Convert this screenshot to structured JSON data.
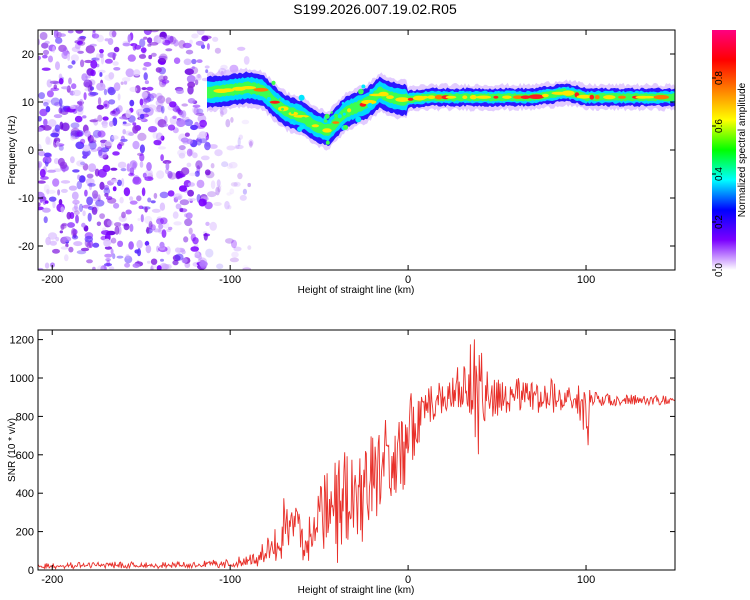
{
  "figure_title": "S199.2026.007.19.02.R05",
  "chart_data": [
    {
      "type": "heatmap",
      "title": "S199.2026.007.19.02.R05",
      "xlabel": "Height of straight line (km)",
      "ylabel": "Frequency (Hz)",
      "xlim": [
        -208,
        150
      ],
      "ylim": [
        -25,
        25
      ],
      "xticks": [
        -200,
        -100,
        0,
        100
      ],
      "yticks": [
        -20,
        -10,
        0,
        10,
        20
      ],
      "xtick_labels": [
        "-200",
        "-100",
        "0",
        "100"
      ],
      "ytick_labels": [
        "-20",
        "-10",
        "0",
        "10",
        "20"
      ],
      "grid": false,
      "ridge": {
        "name": "dominant frequency trace",
        "x": [
          -113,
          -100,
          -90,
          -82,
          -75,
          -68,
          -60,
          -52,
          -45,
          -40,
          -35,
          -28,
          -22,
          -16,
          -10,
          -4,
          0,
          10,
          20,
          30,
          40,
          50,
          60,
          70,
          80,
          88,
          95,
          100,
          110,
          120,
          130,
          140,
          150
        ],
        "y": [
          12,
          12.5,
          13,
          12.5,
          10,
          8,
          7,
          5,
          4,
          6,
          8,
          9,
          10,
          12,
          11,
          10.5,
          10.5,
          11,
          11,
          11,
          11,
          11,
          11,
          11,
          11.5,
          12,
          11.5,
          11,
          11,
          11,
          11,
          11,
          11
        ]
      },
      "noise_region": {
        "x_start": -208,
        "x_end": -100,
        "description": "scattered low-amplitude speckle"
      },
      "colorbar": {
        "label": "Normalized spectral amplitude",
        "range": [
          0,
          1
        ],
        "ticks": [
          0.0,
          0.2,
          0.4,
          0.6,
          0.8
        ],
        "tick_labels": [
          "0.0",
          "0.2",
          "0.4",
          "0.6",
          "0.8"
        ],
        "colors": [
          "#ffffff",
          "#7b00ff",
          "#0000ff",
          "#00ffff",
          "#00ff00",
          "#ffff00",
          "#ff8000",
          "#ff0000",
          "#ff0080"
        ]
      }
    },
    {
      "type": "line",
      "title": "",
      "xlabel": "Height of straight line (km)",
      "ylabel": "SNR (10 * v/v)",
      "xlim": [
        -208,
        150
      ],
      "ylim": [
        0,
        1250
      ],
      "xticks": [
        -200,
        -100,
        0,
        100
      ],
      "yticks": [
        0,
        200,
        400,
        600,
        800,
        1000,
        1200
      ],
      "xtick_labels": [
        "-200",
        "-100",
        "0",
        "100"
      ],
      "ytick_labels": [
        "0",
        "200",
        "400",
        "600",
        "800",
        "1000",
        "1200"
      ],
      "grid": false,
      "series": [
        {
          "name": "SNR",
          "color": "#e8302a",
          "x": [
            -208,
            -180,
            -150,
            -120,
            -100,
            -90,
            -80,
            -75,
            -70,
            -66,
            -63,
            -60,
            -57,
            -54,
            -50,
            -46,
            -42,
            -38,
            -34,
            -30,
            -26,
            -22,
            -18,
            -14,
            -10,
            -6,
            -2,
            0,
            4,
            8,
            12,
            16,
            20,
            24,
            28,
            32,
            36,
            40,
            42,
            44,
            46,
            48,
            50,
            55,
            60,
            65,
            70,
            75,
            80,
            85,
            90,
            95,
            100,
            101,
            102,
            105,
            110,
            120,
            130,
            140,
            150
          ],
          "y": [
            20,
            25,
            22,
            25,
            30,
            40,
            60,
            90,
            180,
            250,
            300,
            200,
            130,
            180,
            250,
            300,
            330,
            360,
            380,
            400,
            420,
            450,
            500,
            540,
            560,
            600,
            640,
            700,
            760,
            800,
            830,
            860,
            880,
            900,
            910,
            920,
            930,
            950,
            1000,
            900,
            880,
            870,
            880,
            880,
            900,
            880,
            910,
            880,
            900,
            880,
            900,
            890,
            860,
            700,
            880,
            900,
            880,
            890,
            880,
            890,
            880
          ],
          "envelope_high": [
            40,
            45,
            42,
            45,
            60,
            80,
            150,
            250,
            420,
            450,
            380,
            300,
            250,
            320,
            420,
            560,
            620,
            660,
            680,
            700,
            720,
            740,
            760,
            800,
            850,
            880,
            900,
            920,
            930,
            950,
            980,
            1000,
            1010,
            1030,
            1060,
            1120,
            1200,
            1250,
            1150,
            1100,
            1000,
            990,
            1000,
            980,
            1000,
            1000,
            1010,
            970,
            1000,
            960,
            980,
            960,
            1000,
            960,
            940,
            930,
            920,
            920,
            910,
            910,
            910
          ],
          "envelope_low": [
            5,
            8,
            8,
            8,
            10,
            15,
            20,
            30,
            60,
            100,
            120,
            60,
            20,
            20,
            60,
            80,
            60,
            20,
            120,
            180,
            120,
            200,
            260,
            300,
            320,
            350,
            420,
            500,
            600,
            700,
            760,
            780,
            800,
            820,
            830,
            840,
            800,
            500,
            750,
            700,
            780,
            800,
            800,
            800,
            810,
            800,
            820,
            800,
            810,
            800,
            820,
            820,
            600,
            600,
            820,
            850,
            850,
            860,
            860,
            860,
            860
          ]
        }
      ]
    }
  ]
}
